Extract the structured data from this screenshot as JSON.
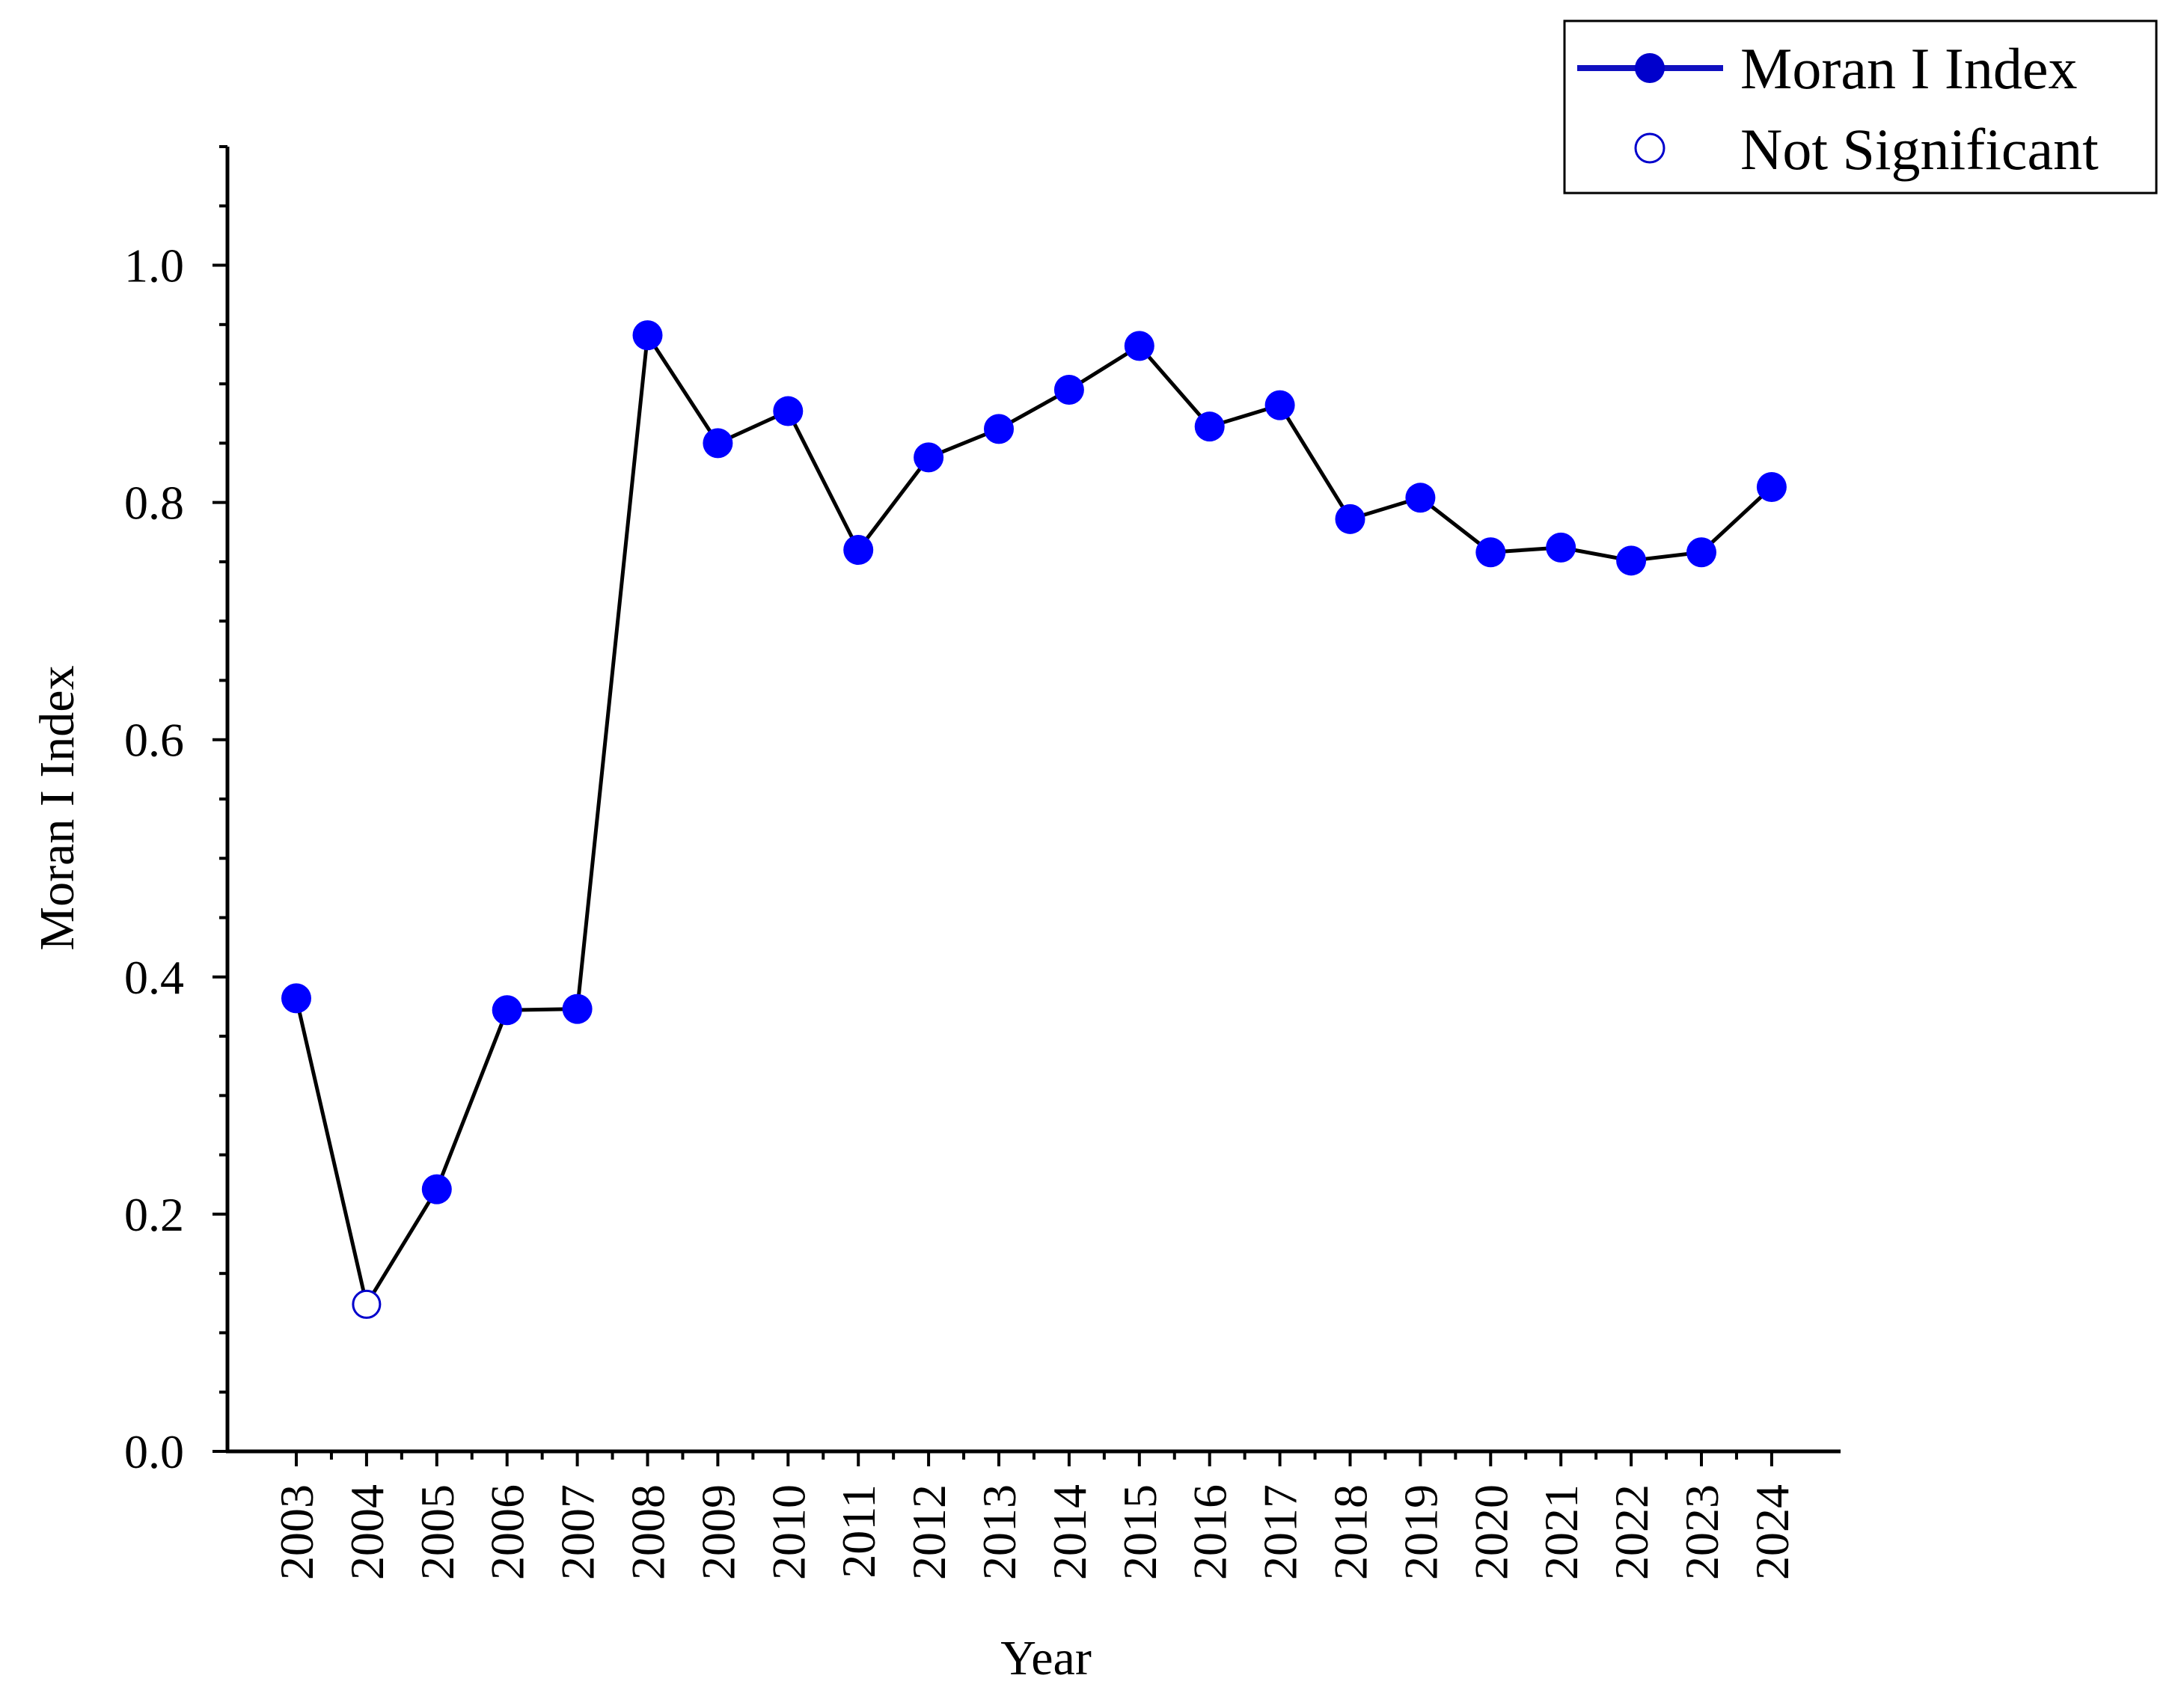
{
  "chart_data": {
    "type": "line",
    "xlabel": "Year",
    "ylabel": "Moran I Index",
    "ylim": [
      0.0,
      1.1
    ],
    "yticks": [
      0.0,
      0.2,
      0.4,
      0.6,
      0.8,
      1.0
    ],
    "ytick_labels": [
      "0.0",
      "0.2",
      "0.4",
      "0.6",
      "0.8",
      "1.0"
    ],
    "grid": false,
    "legend_position": "top-right",
    "categories": [
      "2003",
      "2004",
      "2005",
      "2006",
      "2007",
      "2008",
      "2009",
      "2010",
      "2011",
      "2012",
      "2013",
      "2014",
      "2015",
      "2016",
      "2017",
      "2018",
      "2019",
      "2020",
      "2021",
      "2022",
      "2023",
      "2024"
    ],
    "series": [
      {
        "name": "Moran I Index",
        "values": [
          0.382,
          0.124,
          0.221,
          0.372,
          0.373,
          0.941,
          0.85,
          0.877,
          0.76,
          0.838,
          0.862,
          0.895,
          0.932,
          0.864,
          0.882,
          0.786,
          0.804,
          0.758,
          0.762,
          0.751,
          0.758,
          0.813
        ],
        "significant": [
          true,
          false,
          true,
          true,
          true,
          true,
          true,
          true,
          true,
          true,
          true,
          true,
          true,
          true,
          true,
          true,
          true,
          true,
          true,
          true,
          true,
          true
        ]
      }
    ],
    "legend": [
      {
        "label": "Moran I Index",
        "marker": "filled-circle-line"
      },
      {
        "label": "Not Significant",
        "marker": "open-circle"
      }
    ],
    "colors": {
      "marker_fill": "#0000ff",
      "open_marker_stroke": "#0000cc",
      "line": "#000000",
      "legend_line": "#1010c0"
    }
  }
}
